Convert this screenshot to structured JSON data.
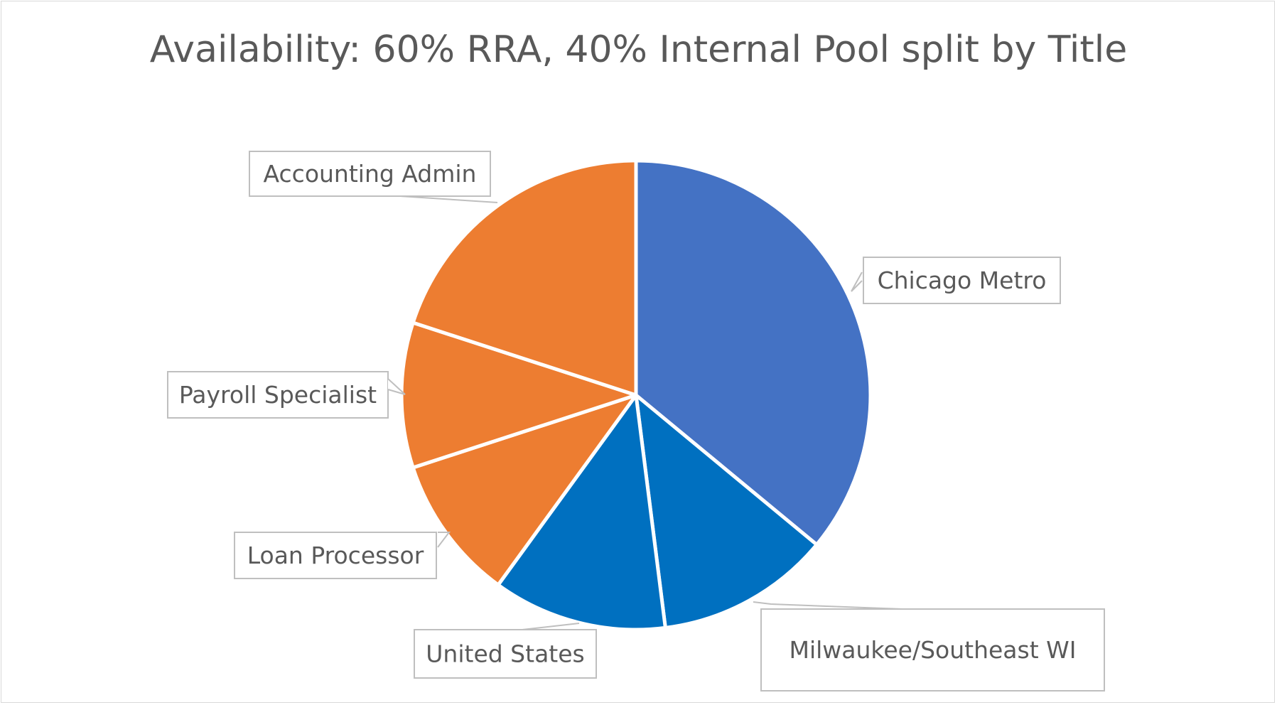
{
  "chart_data": {
    "type": "pie",
    "title": "Availability: 60% RRA, 40% Internal Pool split by Title",
    "start_angle_deg": 0,
    "direction": "clockwise",
    "slices": [
      {
        "label": "Chicago Metro",
        "value": 36,
        "color": "#4472C4"
      },
      {
        "label": "Milwaukee/Southeast WI",
        "value": 12,
        "color": "#0070C0"
      },
      {
        "label": "United States",
        "value": 12,
        "color": "#0070C0"
      },
      {
        "label": "Loan Processor",
        "value": 10,
        "color": "#ED7D31"
      },
      {
        "label": "Payroll Specialist",
        "value": 10,
        "color": "#ED7D31"
      },
      {
        "label": "Accounting Admin",
        "value": 20,
        "color": "#ED7D31"
      }
    ],
    "legend": "none",
    "data_labels": "category names in callouts"
  }
}
